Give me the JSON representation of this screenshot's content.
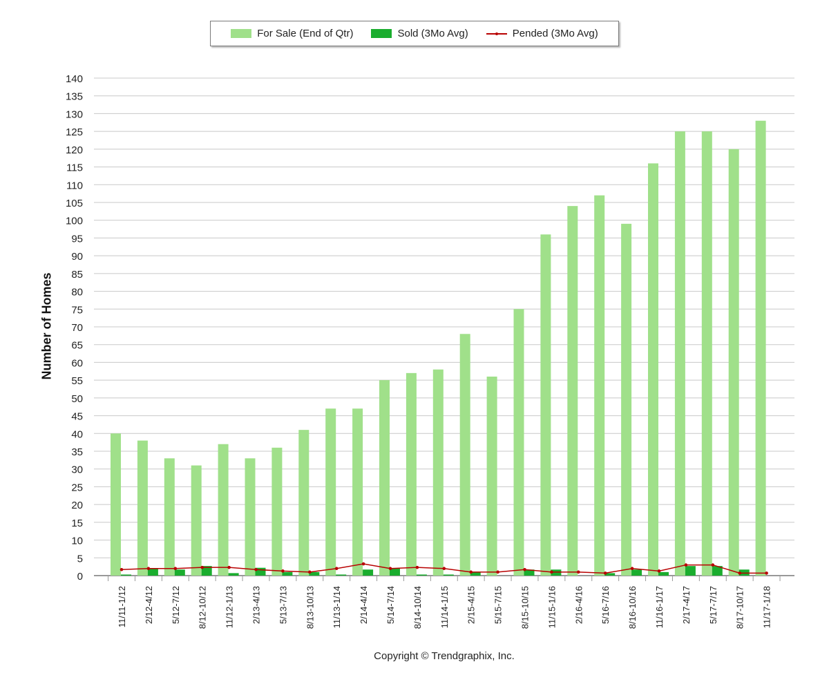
{
  "legend": {
    "for_sale": "For Sale (End of Qtr)",
    "sold": "Sold (3Mo Avg)",
    "pended": "Pended (3Mo Avg)"
  },
  "copyright": "Copyright © Trendgraphix, Inc.",
  "colors": {
    "for_sale": "#a0e08a",
    "sold": "#1aad2e",
    "pended": "#b80000",
    "grid": "#c8c8c8"
  },
  "chart_data": {
    "type": "bar",
    "ylabel": "Number of Homes",
    "xlabel": "",
    "ylim": [
      0,
      140
    ],
    "ytick_step": 5,
    "grid": true,
    "legend_position": "top-center",
    "categories": [
      "11/11-1/12",
      "2/12-4/12",
      "5/12-7/12",
      "8/12-10/12",
      "11/12-1/13",
      "2/13-4/13",
      "5/13-7/13",
      "8/13-10/13",
      "11/13-1/14",
      "2/14-4/14",
      "5/14-7/14",
      "8/14-10/14",
      "11/14-1/15",
      "2/15-4/15",
      "5/15-7/15",
      "8/15-10/15",
      "11/15-1/16",
      "2/16-4/16",
      "5/16-7/16",
      "8/16-10/16",
      "11/16-1/17",
      "2/17-4/17",
      "5/17-7/17",
      "8/17-10/17",
      "11/17-1/18"
    ],
    "series": [
      {
        "name": "For Sale (End of Qtr)",
        "type": "bar",
        "values": [
          40,
          38,
          33,
          31,
          37,
          33,
          36,
          41,
          47,
          47,
          55,
          57,
          58,
          68,
          56,
          75,
          96,
          104,
          107,
          99,
          116,
          125,
          125,
          120,
          128
        ]
      },
      {
        "name": "Sold (3Mo Avg)",
        "type": "bar",
        "values": [
          0.3,
          2,
          1.7,
          2.7,
          0.7,
          2.2,
          1,
          1,
          0.3,
          1.7,
          2,
          0.3,
          0.3,
          1,
          0,
          1.7,
          1.7,
          0,
          0.7,
          1.7,
          1,
          2.7,
          2.7,
          1.7,
          0
        ]
      },
      {
        "name": "Pended (3Mo Avg)",
        "type": "line",
        "values": [
          1.7,
          2,
          2,
          2.3,
          2.3,
          1.7,
          1.3,
          1,
          2,
          3.3,
          2,
          2.3,
          2,
          1,
          1,
          1.7,
          1,
          1,
          0.7,
          2,
          1.3,
          3,
          3,
          0.7,
          0.7
        ]
      }
    ]
  }
}
